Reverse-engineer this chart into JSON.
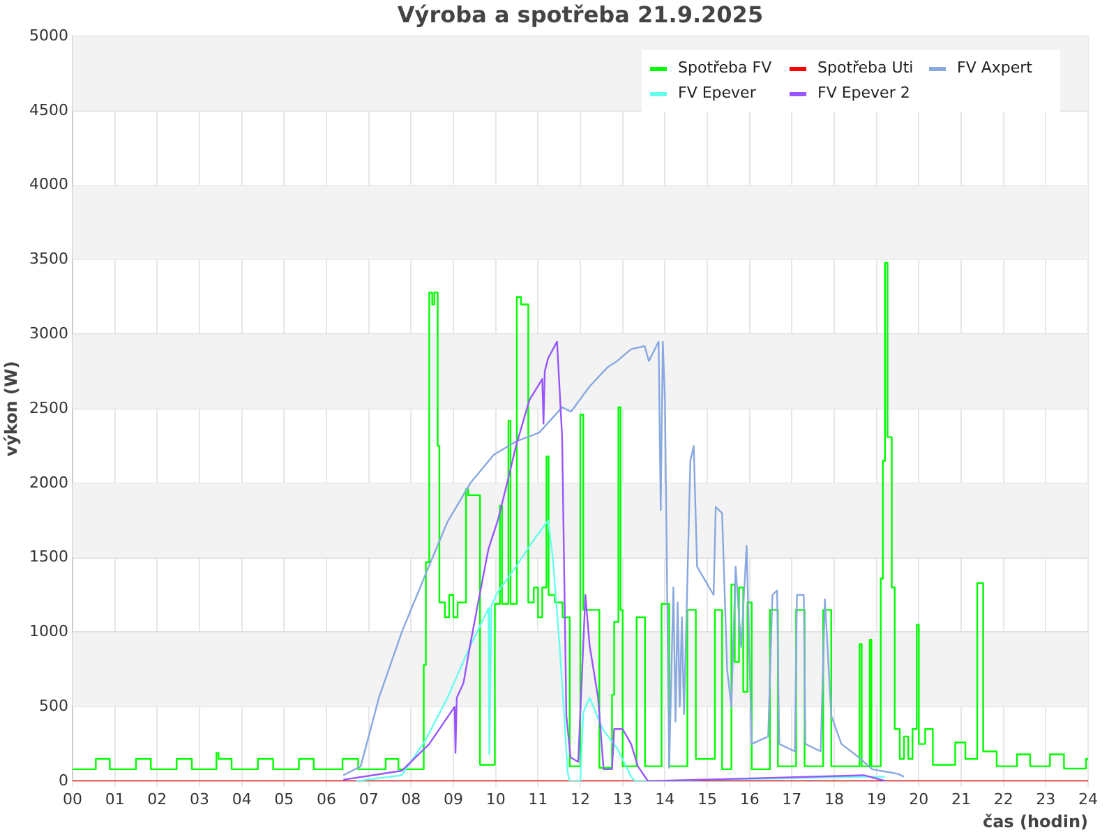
{
  "chart_data": {
    "type": "line",
    "title": "Výroba a spotřeba 21.9.2025",
    "xlabel": "čas (hodin)",
    "ylabel": "výkon (W)",
    "xlim": [
      0,
      24
    ],
    "xticks": [
      {
        "value": 0,
        "label": "00"
      },
      {
        "value": 1,
        "label": "01"
      },
      {
        "value": 2,
        "label": "02"
      },
      {
        "value": 3,
        "label": "03"
      },
      {
        "value": 4,
        "label": "04"
      },
      {
        "value": 5,
        "label": "05"
      },
      {
        "value": 6,
        "label": "06"
      },
      {
        "value": 7,
        "label": "07"
      },
      {
        "value": 8,
        "label": "08"
      },
      {
        "value": 9,
        "label": "09"
      },
      10,
      11,
      12,
      13,
      14,
      15,
      16,
      17,
      18,
      19,
      20,
      21,
      22,
      23,
      24
    ],
    "ylim": [
      0,
      5000
    ],
    "yticks": [
      0,
      500,
      1000,
      1500,
      2000,
      2500,
      3000,
      3500,
      4000,
      4500,
      5000
    ],
    "grid": true,
    "legend": "top right",
    "marker": "none",
    "line_style": "solid",
    "series": [
      {
        "name": "Spotřeba FV",
        "type": "step",
        "color": "#00ff00",
        "x": [
          0,
          0.55,
          0.88,
          1.5,
          1.85,
          2.46,
          2.82,
          3.4,
          3.45,
          3.76,
          4.38,
          4.74,
          5.35,
          5.7,
          6.38,
          6.75,
          7.4,
          7.7,
          8.3,
          8.35,
          8.43,
          8.5,
          8.55,
          8.63,
          8.67,
          8.8,
          8.9,
          9.0,
          9.1,
          9.3,
          9.35,
          9.63,
          9.98,
          10.1,
          10.15,
          10.3,
          10.35,
          10.5,
          10.6,
          10.77,
          10.9,
          11.0,
          11.1,
          11.2,
          11.25,
          11.4,
          11.58,
          11.75,
          12.0,
          12.07,
          12.45,
          12.75,
          12.8,
          12.9,
          12.95,
          13.0,
          13.33,
          13.53,
          13.92,
          14.1,
          14.53,
          14.73,
          15.18,
          15.35,
          15.57,
          15.65,
          15.75,
          15.85,
          15.95,
          16.05,
          16.48,
          16.67,
          17.1,
          17.3,
          17.74,
          17.93,
          18.6,
          18.65,
          18.84,
          18.88,
          19.1,
          19.15,
          19.2,
          19.26,
          19.36,
          19.43,
          19.55,
          19.65,
          19.75,
          19.85,
          19.95,
          20.0,
          20.15,
          20.33,
          20.86,
          21.1,
          21.38,
          21.52,
          21.84,
          22.32,
          22.63,
          23.1,
          23.43,
          23.95,
          24
        ],
        "values": [
          80,
          150,
          80,
          150,
          80,
          150,
          80,
          190,
          150,
          80,
          150,
          80,
          150,
          80,
          150,
          80,
          150,
          80,
          780,
          1470,
          3280,
          3200,
          3280,
          2250,
          1200,
          1100,
          1250,
          1100,
          1200,
          1960,
          1920,
          110,
          1190,
          1850,
          1190,
          2420,
          1190,
          3250,
          3200,
          1200,
          1300,
          1100,
          1300,
          2180,
          1250,
          1200,
          1100,
          100,
          2460,
          1150,
          90,
          580,
          1070,
          2510,
          1150,
          100,
          1100,
          100,
          1190,
          100,
          1150,
          150,
          1150,
          80,
          1320,
          800,
          1300,
          600,
          1200,
          80,
          1150,
          100,
          1150,
          100,
          1150,
          100,
          920,
          100,
          950,
          100,
          1360,
          2150,
          3480,
          2310,
          1300,
          350,
          150,
          300,
          150,
          350,
          1050,
          250,
          350,
          110,
          260,
          150,
          1330,
          200,
          100,
          180,
          100,
          180,
          85,
          150,
          150
        ]
      },
      {
        "name": "Spotřeba Uti",
        "color": "#ff0000",
        "x": [
          0,
          24
        ],
        "values": [
          0,
          0
        ]
      },
      {
        "name": "FV Axpert",
        "color": "#88a8e0",
        "x": [
          6.4,
          6.81,
          7.24,
          7.78,
          8.33,
          8.86,
          9.4,
          9.95,
          10.48,
          11.03,
          11.57,
          11.78,
          12.22,
          12.65,
          12.87,
          13.2,
          13.52,
          13.62,
          13.85,
          13.9,
          13.95,
          14.0,
          14.1,
          14.2,
          14.25,
          14.3,
          14.35,
          14.4,
          14.45,
          14.5,
          14.6,
          14.68,
          14.76,
          15.15,
          15.2,
          15.35,
          15.47,
          15.57,
          15.67,
          15.8,
          15.93,
          16.05,
          16.44,
          16.54,
          16.65,
          16.7,
          17.07,
          17.12,
          17.28,
          17.32,
          17.68,
          17.78,
          17.93,
          18.17,
          18.58,
          18.9,
          19.5,
          19.65
        ],
        "values": [
          40,
          100,
          560,
          1000,
          1380,
          1740,
          2000,
          2190,
          2280,
          2340,
          2510,
          2480,
          2650,
          2780,
          2820,
          2900,
          2920,
          2820,
          2950,
          1820,
          2950,
          2560,
          90,
          1300,
          400,
          1200,
          500,
          1100,
          450,
          1000,
          2150,
          2250,
          1440,
          1250,
          1840,
          1800,
          750,
          500,
          1440,
          900,
          1580,
          250,
          300,
          1250,
          1280,
          250,
          200,
          1250,
          1250,
          250,
          200,
          1220,
          440,
          250,
          160,
          80,
          50,
          30
        ]
      },
      {
        "name": "FV Epever",
        "color": "#66ffee",
        "x": [
          6.7,
          7.78,
          8.33,
          8.86,
          9.4,
          9.83,
          9.85,
          9.9,
          10.05,
          10.48,
          10.9,
          11.24,
          11.35,
          11.51,
          11.62,
          11.7,
          11.75,
          12.0,
          12.07,
          12.22,
          12.48,
          12.55,
          12.87,
          13.2,
          13.3,
          18.7,
          19.2
        ],
        "values": [
          0,
          40,
          270,
          560,
          910,
          1160,
          180,
          1180,
          1270,
          1440,
          1620,
          1750,
          1500,
          910,
          440,
          60,
          0,
          0,
          460,
          560,
          380,
          340,
          220,
          30,
          0,
          30,
          30
        ]
      },
      {
        "name": "FV Epever 2",
        "color": "#9955ff",
        "x": [
          6.4,
          7.78,
          8.43,
          9.03,
          9.05,
          9.08,
          9.24,
          9.4,
          9.62,
          9.83,
          10.05,
          10.27,
          10.48,
          10.8,
          11.1,
          11.13,
          11.16,
          11.24,
          11.45,
          11.57,
          11.62,
          11.67,
          11.77,
          11.95,
          12.12,
          12.22,
          12.42,
          12.45,
          12.55,
          12.75,
          12.8,
          13.0,
          13.2,
          13.36,
          13.6,
          18.7,
          19.23
        ],
        "values": [
          10,
          70,
          250,
          500,
          190,
          560,
          660,
          920,
          1250,
          1560,
          1750,
          2000,
          2250,
          2560,
          2700,
          2400,
          2750,
          2840,
          2950,
          2310,
          1380,
          440,
          160,
          130,
          1250,
          910,
          560,
          450,
          80,
          80,
          350,
          350,
          250,
          100,
          0,
          40,
          0
        ]
      }
    ]
  }
}
